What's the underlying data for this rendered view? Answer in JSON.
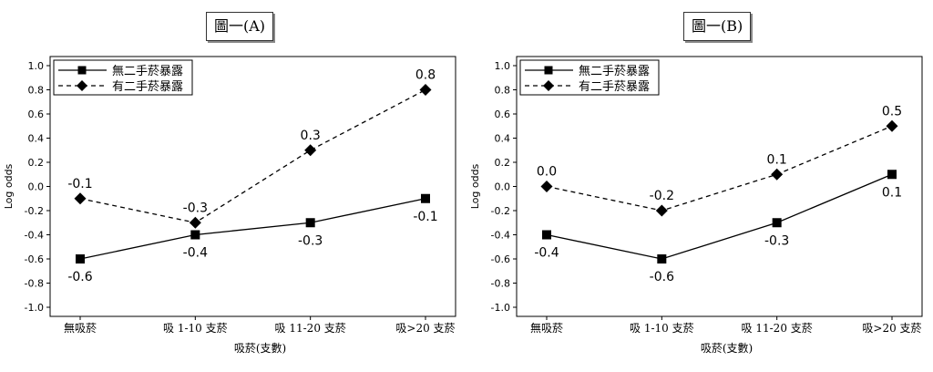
{
  "y_ticks": [
    "1.0",
    "0.8",
    "0.6",
    "0.4",
    "0.2",
    "0.0",
    "-0.2",
    "-0.4",
    "-0.6",
    "-0.8",
    "-1.0"
  ],
  "chart_data": [
    {
      "type": "line",
      "title": "圖一(A)",
      "xlabel": "吸菸(支數)",
      "ylabel": "Log odds",
      "ylim": [
        -1.0,
        1.0
      ],
      "categories": [
        "無吸菸",
        "吸 1-10 支菸",
        "吸 11-20 支菸",
        "吸>20 支菸"
      ],
      "legend": "top-left",
      "grid": false,
      "series": [
        {
          "name": "無二手菸暴露",
          "marker": "square",
          "dash": "solid",
          "values": [
            -0.6,
            -0.4,
            -0.3,
            -0.1
          ],
          "labels": [
            "-0.6",
            "-0.4",
            "-0.3",
            "-0.1"
          ]
        },
        {
          "name": "有二手菸暴露",
          "marker": "diamond",
          "dash": "dashed",
          "values": [
            -0.1,
            -0.3,
            0.3,
            0.8
          ],
          "labels": [
            "-0.1",
            "-0.3",
            "0.3",
            "0.8"
          ]
        }
      ]
    },
    {
      "type": "line",
      "title": "圖一(B)",
      "xlabel": "吸菸(支數)",
      "ylabel": "Log odds",
      "ylim": [
        -1.0,
        1.0
      ],
      "categories": [
        "無吸菸",
        "吸 1-10 支菸",
        "吸 11-20 支菸",
        "吸>20 支菸"
      ],
      "legend": "top-left",
      "grid": false,
      "series": [
        {
          "name": "無二手菸暴露",
          "marker": "square",
          "dash": "solid",
          "values": [
            -0.4,
            -0.6,
            -0.3,
            0.1
          ],
          "labels": [
            "-0.4",
            "-0.6",
            "-0.3",
            "0.1"
          ]
        },
        {
          "name": "有二手菸暴露",
          "marker": "diamond",
          "dash": "dashed",
          "values": [
            0.0,
            -0.2,
            0.1,
            0.5
          ],
          "labels": [
            "0.0",
            "-0.2",
            "0.1",
            "0.5"
          ]
        }
      ]
    }
  ]
}
